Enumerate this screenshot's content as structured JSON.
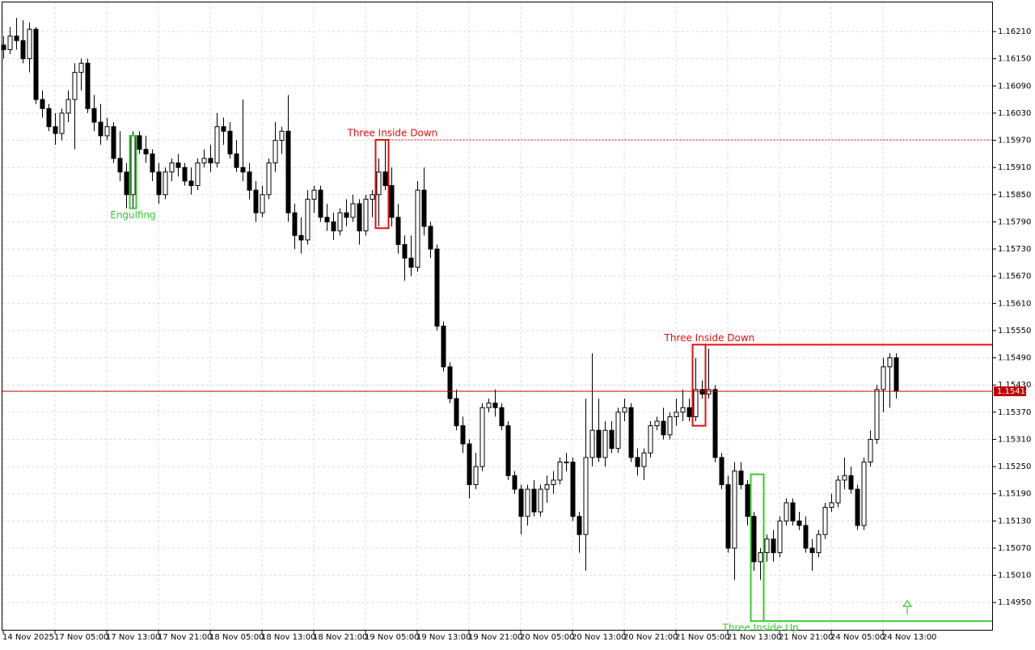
{
  "chart_data": {
    "type": "candlestick",
    "categories": [
      "14 Nov 2025",
      null,
      null,
      null,
      null,
      null,
      null,
      null,
      "17 Nov 05:00",
      null,
      null,
      null,
      null,
      null,
      null,
      null,
      "17 Nov 13:00",
      null,
      null,
      null,
      null,
      null,
      null,
      null,
      "17 Nov 21:00",
      null,
      null,
      null,
      null,
      null,
      null,
      null,
      "18 Nov 05:00",
      null,
      null,
      null,
      null,
      null,
      null,
      null,
      "18 Nov 13:00",
      null,
      null,
      null,
      null,
      null,
      null,
      null,
      "18 Nov 21:00",
      null,
      null,
      null,
      null,
      null,
      null,
      null,
      "19 Nov 05:00",
      null,
      null,
      null,
      null,
      null,
      null,
      null,
      "19 Nov 13:00",
      null,
      null,
      null,
      null,
      null,
      null,
      null,
      "19 Nov 21:00",
      null,
      null,
      null,
      null,
      null,
      null,
      null,
      "20 Nov 05:00",
      null,
      null,
      null,
      null,
      null,
      null,
      null,
      "20 Nov 13:00",
      null,
      null,
      null,
      null,
      null,
      null,
      null,
      "20 Nov 21:00",
      null,
      null,
      null,
      null,
      null,
      null,
      null,
      "21 Nov 05:00",
      null,
      null,
      null,
      null,
      null,
      null,
      null,
      "21 Nov 13:00",
      null,
      null,
      null,
      null,
      null,
      null,
      null,
      "21 Nov 21:00",
      null,
      null,
      null,
      null,
      null,
      null,
      null,
      "24 Nov 05:00",
      null,
      null,
      null,
      null,
      null,
      null,
      null,
      "24 Nov 13:00",
      null,
      null
    ],
    "candles": [
      [
        1.1618,
        1.162,
        1.1615,
        1.1617
      ],
      [
        1.1617,
        1.1622,
        1.1616,
        1.162
      ],
      [
        1.162,
        1.1624,
        1.1617,
        1.1619
      ],
      [
        1.1619,
        1.16235,
        1.1614,
        1.1615
      ],
      [
        1.1615,
        1.1623,
        1.1612,
        1.16215
      ],
      [
        1.16215,
        1.1622,
        1.1605,
        1.1606
      ],
      [
        1.1606,
        1.1608,
        1.1602,
        1.1604
      ],
      [
        1.1604,
        1.1605,
        1.1599,
        1.16
      ],
      [
        1.16,
        1.1603,
        1.1596,
        1.15985
      ],
      [
        1.15985,
        1.1604,
        1.1597,
        1.1603
      ],
      [
        1.1603,
        1.1608,
        1.1601,
        1.1606
      ],
      [
        1.1606,
        1.1614,
        1.1595,
        1.1612
      ],
      [
        1.1612,
        1.1615,
        1.1608,
        1.1614
      ],
      [
        1.1614,
        1.1615,
        1.1603,
        1.1604
      ],
      [
        1.1604,
        1.1607,
        1.1599,
        1.1601
      ],
      [
        1.1601,
        1.1605,
        1.1596,
        1.1598
      ],
      [
        1.1598,
        1.1602,
        1.1597,
        1.16
      ],
      [
        1.16,
        1.1601,
        1.1592,
        1.1593
      ],
      [
        1.1593,
        1.1599,
        1.1588,
        1.159
      ],
      [
        1.159,
        1.1592,
        1.1582,
        1.1585
      ],
      [
        1.1585,
        1.1599,
        1.1582,
        1.1598
      ],
      [
        1.1598,
        1.1599,
        1.1594,
        1.1595
      ],
      [
        1.1595,
        1.1598,
        1.1592,
        1.1594
      ],
      [
        1.1594,
        1.1595,
        1.1588,
        1.159
      ],
      [
        1.159,
        1.1592,
        1.1583,
        1.1585
      ],
      [
        1.1585,
        1.1591,
        1.1584,
        1.159
      ],
      [
        1.159,
        1.1593,
        1.1588,
        1.1592
      ],
      [
        1.1592,
        1.1594,
        1.1589,
        1.1591
      ],
      [
        1.1591,
        1.1592,
        1.1587,
        1.1588
      ],
      [
        1.1588,
        1.1591,
        1.1585,
        1.1587
      ],
      [
        1.1587,
        1.1593,
        1.1586,
        1.1592
      ],
      [
        1.1592,
        1.1595,
        1.1591,
        1.1593
      ],
      [
        1.1593,
        1.1596,
        1.159,
        1.1592
      ],
      [
        1.1592,
        1.1603,
        1.1591,
        1.16
      ],
      [
        1.16,
        1.1602,
        1.1596,
        1.1599
      ],
      [
        1.1599,
        1.1601,
        1.1593,
        1.1594
      ],
      [
        1.1594,
        1.1597,
        1.159,
        1.1591
      ],
      [
        1.1591,
        1.1606,
        1.1588,
        1.159
      ],
      [
        1.159,
        1.1592,
        1.1584,
        1.1586
      ],
      [
        1.1586,
        1.1588,
        1.1579,
        1.1581
      ],
      [
        1.1581,
        1.1587,
        1.158,
        1.1585
      ],
      [
        1.1585,
        1.1593,
        1.1584,
        1.1592
      ],
      [
        1.1592,
        1.1601,
        1.159,
        1.1597
      ],
      [
        1.1597,
        1.16,
        1.1594,
        1.1599
      ],
      [
        1.1599,
        1.1607,
        1.1579,
        1.1581
      ],
      [
        1.1581,
        1.1583,
        1.1573,
        1.1576
      ],
      [
        1.1576,
        1.158,
        1.1572,
        1.1575
      ],
      [
        1.1575,
        1.1586,
        1.1574,
        1.1584
      ],
      [
        1.1584,
        1.1587,
        1.1581,
        1.1586
      ],
      [
        1.1586,
        1.1587,
        1.1579,
        1.158
      ],
      [
        1.158,
        1.1583,
        1.1577,
        1.1579
      ],
      [
        1.1579,
        1.1581,
        1.1575,
        1.1577
      ],
      [
        1.1577,
        1.1582,
        1.1576,
        1.1581
      ],
      [
        1.1581,
        1.1584,
        1.1578,
        1.158
      ],
      [
        1.158,
        1.1585,
        1.1579,
        1.1583
      ],
      [
        1.1583,
        1.1584,
        1.1574,
        1.1577
      ],
      [
        1.1577,
        1.1585,
        1.1576,
        1.1584
      ],
      [
        1.1584,
        1.1586,
        1.158,
        1.1585
      ],
      [
        1.1585,
        1.1593,
        1.1578,
        1.159
      ],
      [
        1.159,
        1.1597,
        1.1586,
        1.1587
      ],
      [
        1.1587,
        1.1591,
        1.1578,
        1.158
      ],
      [
        1.158,
        1.1583,
        1.1572,
        1.1574
      ],
      [
        1.1574,
        1.1576,
        1.1566,
        1.1571
      ],
      [
        1.1571,
        1.1576,
        1.1567,
        1.1569
      ],
      [
        1.1569,
        1.1588,
        1.1568,
        1.1586
      ],
      [
        1.1586,
        1.1591,
        1.1576,
        1.1578
      ],
      [
        1.1578,
        1.1579,
        1.1571,
        1.1573
      ],
      [
        1.1573,
        1.1574,
        1.1555,
        1.1556
      ],
      [
        1.1556,
        1.1557,
        1.1546,
        1.1547
      ],
      [
        1.1547,
        1.1548,
        1.1539,
        1.154
      ],
      [
        1.154,
        1.1542,
        1.1533,
        1.1534
      ],
      [
        1.1534,
        1.1536,
        1.1528,
        1.153
      ],
      [
        1.153,
        1.1531,
        1.1518,
        1.1521
      ],
      [
        1.1521,
        1.1528,
        1.152,
        1.1525
      ],
      [
        1.1525,
        1.1539,
        1.1524,
        1.1538
      ],
      [
        1.1538,
        1.154,
        1.1537,
        1.1539
      ],
      [
        1.1539,
        1.1542,
        1.1536,
        1.1538
      ],
      [
        1.1538,
        1.1539,
        1.1533,
        1.1534
      ],
      [
        1.1534,
        1.1535,
        1.1522,
        1.1523
      ],
      [
        1.1523,
        1.1524,
        1.1519,
        1.152
      ],
      [
        1.152,
        1.1521,
        1.151,
        1.1514
      ],
      [
        1.1514,
        1.1521,
        1.1512,
        1.152
      ],
      [
        1.152,
        1.1522,
        1.1514,
        1.1515
      ],
      [
        1.1515,
        1.1521,
        1.1514,
        1.152
      ],
      [
        1.152,
        1.1523,
        1.1517,
        1.1521
      ],
      [
        1.1521,
        1.1524,
        1.1519,
        1.1522
      ],
      [
        1.1522,
        1.1527,
        1.1521,
        1.1526
      ],
      [
        1.1526,
        1.1528,
        1.1524,
        1.1526
      ],
      [
        1.1526,
        1.1527,
        1.1513,
        1.1514
      ],
      [
        1.1514,
        1.1515,
        1.1506,
        1.151
      ],
      [
        1.151,
        1.154,
        1.1502,
        1.1527
      ],
      [
        1.1527,
        1.155,
        1.1525,
        1.1533
      ],
      [
        1.1533,
        1.154,
        1.1526,
        1.1527
      ],
      [
        1.1527,
        1.1535,
        1.1525,
        1.1533
      ],
      [
        1.1533,
        1.1535,
        1.1528,
        1.1529
      ],
      [
        1.1529,
        1.1538,
        1.1528,
        1.1537
      ],
      [
        1.1537,
        1.154,
        1.1535,
        1.1538
      ],
      [
        1.1538,
        1.1539,
        1.1526,
        1.1527
      ],
      [
        1.1527,
        1.1529,
        1.1523,
        1.1525
      ],
      [
        1.1525,
        1.1529,
        1.1522,
        1.1528
      ],
      [
        1.1528,
        1.1535,
        1.1527,
        1.1534
      ],
      [
        1.1534,
        1.1536,
        1.1533,
        1.1535
      ],
      [
        1.1535,
        1.1538,
        1.1531,
        1.1532
      ],
      [
        1.1532,
        1.1537,
        1.1531,
        1.1536
      ],
      [
        1.1536,
        1.154,
        1.1534,
        1.1537
      ],
      [
        1.1537,
        1.1542,
        1.1535,
        1.1538
      ],
      [
        1.1538,
        1.154,
        1.1535,
        1.1536
      ],
      [
        1.1536,
        1.1549,
        1.1535,
        1.1542
      ],
      [
        1.1542,
        1.1544,
        1.154,
        1.1541
      ],
      [
        1.1541,
        1.1551,
        1.154,
        1.1542
      ],
      [
        1.1542,
        1.1543,
        1.1526,
        1.1527
      ],
      [
        1.1527,
        1.1528,
        1.152,
        1.1521
      ],
      [
        1.1521,
        1.1523,
        1.1506,
        1.1507
      ],
      [
        1.1507,
        1.1526,
        1.15,
        1.1524
      ],
      [
        1.1524,
        1.1526,
        1.152,
        1.1521
      ],
      [
        1.1521,
        1.1522,
        1.1512,
        1.1514
      ],
      [
        1.1514,
        1.1515,
        1.1502,
        1.1504
      ],
      [
        1.1504,
        1.1507,
        1.15,
        1.1506
      ],
      [
        1.1506,
        1.151,
        1.1504,
        1.1509
      ],
      [
        1.1509,
        1.1511,
        1.1504,
        1.1506
      ],
      [
        1.1506,
        1.1514,
        1.1505,
        1.1513
      ],
      [
        1.1513,
        1.1518,
        1.1512,
        1.1517
      ],
      [
        1.1517,
        1.1518,
        1.1512,
        1.1513
      ],
      [
        1.1513,
        1.1515,
        1.1511,
        1.1512
      ],
      [
        1.1512,
        1.1514,
        1.1506,
        1.1507
      ],
      [
        1.1507,
        1.1509,
        1.1502,
        1.1506
      ],
      [
        1.1506,
        1.1511,
        1.1505,
        1.151
      ],
      [
        1.151,
        1.1517,
        1.1509,
        1.1516
      ],
      [
        1.1516,
        1.1519,
        1.1515,
        1.1517
      ],
      [
        1.1517,
        1.1523,
        1.1516,
        1.1522
      ],
      [
        1.1522,
        1.1527,
        1.152,
        1.1523
      ],
      [
        1.1523,
        1.1525,
        1.1519,
        1.152
      ],
      [
        1.152,
        1.1521,
        1.1511,
        1.1512
      ],
      [
        1.1512,
        1.1527,
        1.1511,
        1.1526
      ],
      [
        1.1526,
        1.1533,
        1.1525,
        1.1531
      ],
      [
        1.1531,
        1.1543,
        1.153,
        1.1542
      ],
      [
        1.1542,
        1.1549,
        1.1537,
        1.1547
      ],
      [
        1.1547,
        1.155,
        1.1538,
        1.1549
      ],
      [
        1.1549,
        1.155,
        1.154,
        1.15416
      ]
    ],
    "bull_color": "#ffffff",
    "bear_color": "#000000",
    "outline_color": "#000000",
    "ylim": [
      1.14888,
      1.16276
    ],
    "yticks": [
      {
        "value": 1.1621,
        "label": "1.16210"
      },
      {
        "value": 1.1615,
        "label": "1.16150"
      },
      {
        "value": 1.1609,
        "label": "1.16090"
      },
      {
        "value": 1.1603,
        "label": "1.16030"
      },
      {
        "value": 1.1597,
        "label": "1.15970"
      },
      {
        "value": 1.1591,
        "label": "1.15910"
      },
      {
        "value": 1.1585,
        "label": "1.15850"
      },
      {
        "value": 1.1579,
        "label": "1.15790"
      },
      {
        "value": 1.1573,
        "label": "1.15730"
      },
      {
        "value": 1.1567,
        "label": "1.15670"
      },
      {
        "value": 1.1561,
        "label": "1.15610"
      },
      {
        "value": 1.1555,
        "label": "1.15550"
      },
      {
        "value": 1.1549,
        "label": "1.15490"
      },
      {
        "value": 1.1543,
        "label": "1.15430"
      },
      {
        "value": 1.1537,
        "label": "1.15370"
      },
      {
        "value": 1.1531,
        "label": "1.15310"
      },
      {
        "value": 1.1525,
        "label": "1.15250"
      },
      {
        "value": 1.1519,
        "label": "1.15190"
      },
      {
        "value": 1.1513,
        "label": "1.15130"
      },
      {
        "value": 1.1507,
        "label": "1.15070"
      },
      {
        "value": 1.1501,
        "label": "1.15010"
      },
      {
        "value": 1.1495,
        "label": "1.14950"
      }
    ],
    "grid": true,
    "current_price": 1.15416,
    "current_price_color": "#c00000",
    "patterns": [
      {
        "label": "Engulfing",
        "color": "#33cc33",
        "candles": [
          20,
          20
        ],
        "top": 1.1598,
        "bottom": 1.1582,
        "label_side": "below"
      },
      {
        "label": "Three Inside Down",
        "color": "#e01010",
        "candles": [
          58,
          59
        ],
        "top": 1.15971,
        "bottom": 1.15776,
        "extend": "top",
        "line_style": "dashed",
        "label_side": "above"
      },
      {
        "label": "Three Inside Down",
        "color": "#e01010",
        "candles": [
          107,
          108
        ],
        "top": 1.15519,
        "bottom": 1.1534,
        "extend": "top",
        "line_style": "solid",
        "label_side": "above"
      },
      {
        "label": "Three Inside Up",
        "color": "#33cc33",
        "candles": [
          116,
          117
        ],
        "top": 1.15233,
        "bottom": 1.14909,
        "extend": "bottom",
        "line_style": "solid",
        "label_side": "below"
      }
    ]
  }
}
